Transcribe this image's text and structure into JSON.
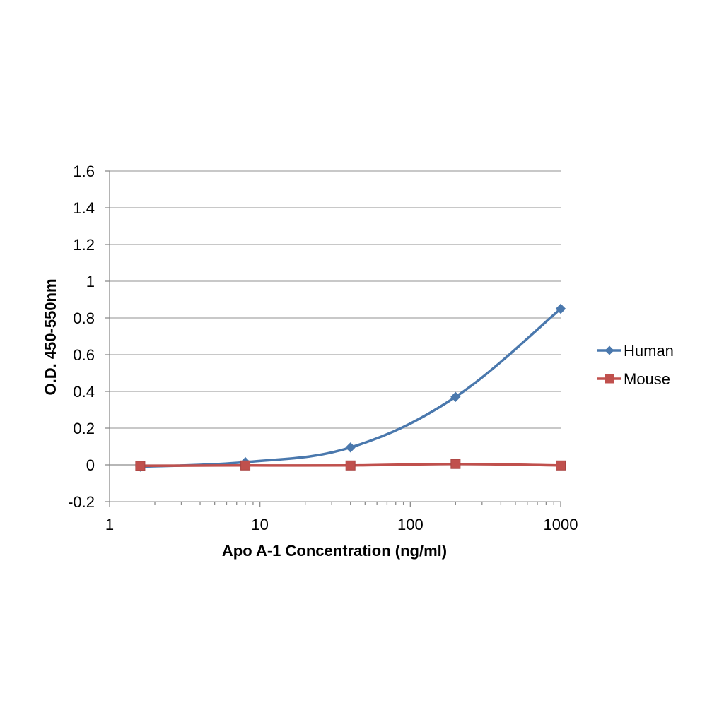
{
  "chart_data": {
    "type": "line",
    "xlabel": "Apo A-1 Concentration  (ng/ml)",
    "ylabel": "O.D. 450-550nm",
    "x_scale": "log",
    "xlim": [
      1,
      1000
    ],
    "ylim": [
      -0.2,
      1.6
    ],
    "x_ticks": [
      1,
      10,
      100,
      1000
    ],
    "x_tick_labels": [
      "1",
      "10",
      "100",
      "1000"
    ],
    "y_ticks": [
      -0.2,
      0,
      0.2,
      0.4,
      0.6,
      0.8,
      1,
      1.2,
      1.4,
      1.6
    ],
    "y_tick_labels": [
      "-0.2",
      "0",
      "0.2",
      "0.4",
      "0.6",
      "0.8",
      "1",
      "1.2",
      "1.4",
      "1.6"
    ],
    "grid": "horizontal",
    "legend": "right",
    "series": [
      {
        "name": "Human",
        "color": "#4a78ad",
        "marker": "diamond",
        "x": [
          1.6,
          8,
          40,
          200,
          1000
        ],
        "y": [
          -0.01,
          0.015,
          0.095,
          0.37,
          0.85
        ]
      },
      {
        "name": "Mouse",
        "color": "#c0504d",
        "marker": "square",
        "x": [
          1.6,
          8,
          40,
          200,
          1000
        ],
        "y": [
          -0.005,
          -0.003,
          -0.003,
          0.005,
          -0.003
        ]
      }
    ]
  }
}
